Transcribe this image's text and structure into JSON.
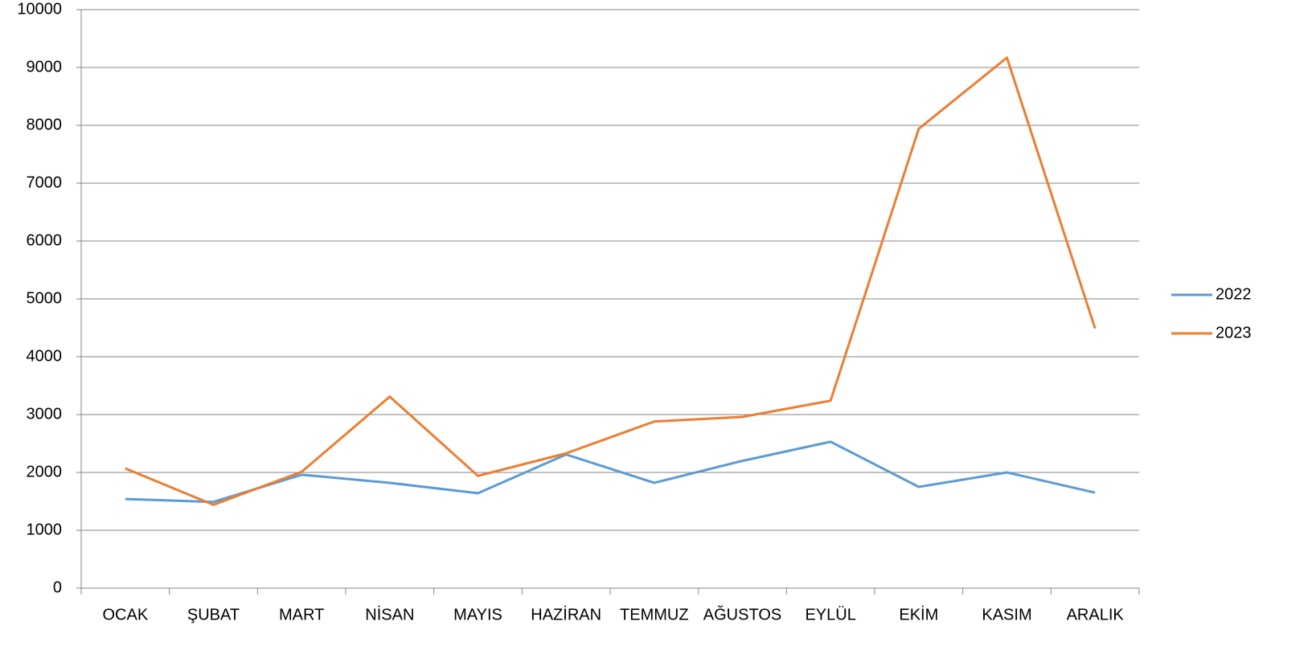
{
  "chart_data": {
    "type": "line",
    "categories": [
      "OCAK",
      "ŞUBAT",
      "MART",
      "NİSAN",
      "MAYIS",
      "HAZİRAN",
      "TEMMUZ",
      "AĞUSTOS",
      "EYLÜL",
      "EKİM",
      "KASIM",
      "ARALIK"
    ],
    "series": [
      {
        "name": "2022",
        "color": "#5b9bd5",
        "values": [
          1540,
          1490,
          1960,
          1820,
          1640,
          2310,
          1820,
          2200,
          2530,
          1750,
          2000,
          1650
        ]
      },
      {
        "name": "2023",
        "color": "#ed7d31",
        "values": [
          2070,
          1440,
          2010,
          3310,
          1940,
          2330,
          2880,
          2960,
          3240,
          7940,
          9170,
          4490
        ]
      }
    ],
    "ylim": [
      0,
      10000
    ],
    "yticks": [
      0,
      1000,
      2000,
      3000,
      4000,
      5000,
      6000,
      7000,
      8000,
      9000,
      10000
    ],
    "grid": true,
    "legend": "right"
  }
}
